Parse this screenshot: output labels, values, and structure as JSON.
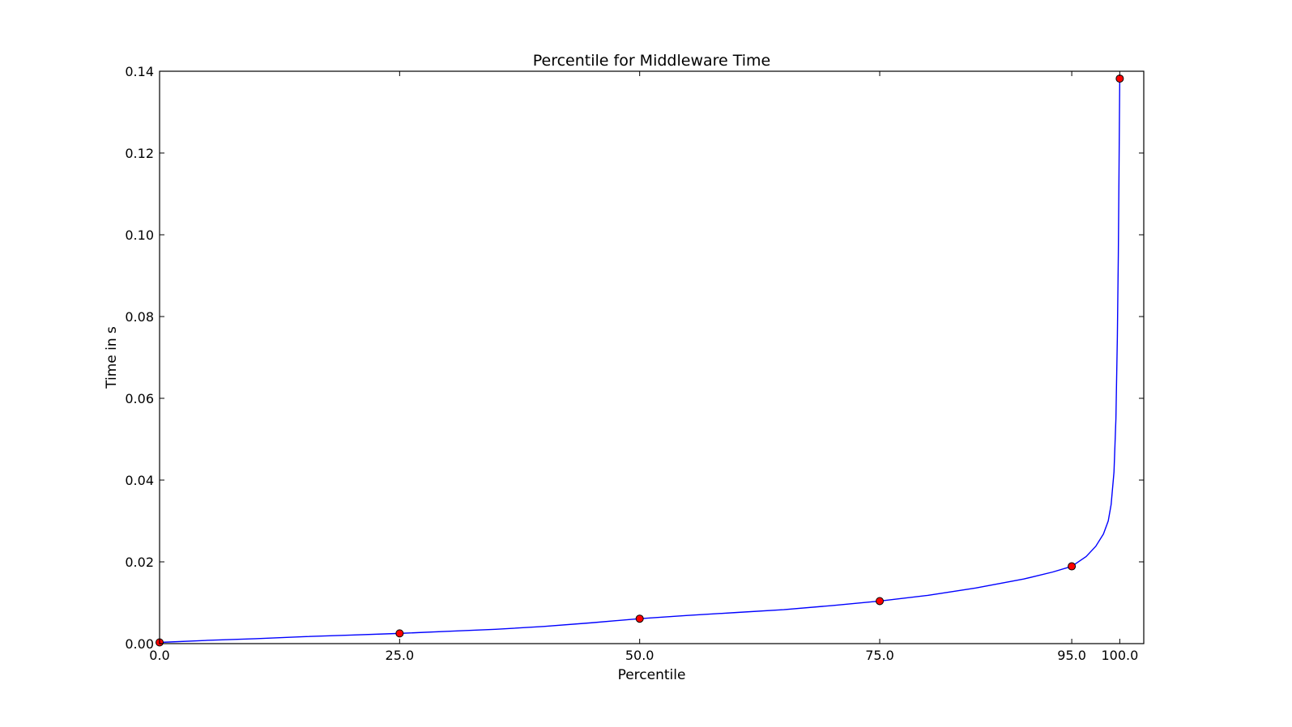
{
  "chart_data": {
    "type": "line",
    "title": "Percentile for Middleware Time",
    "xlabel": "Percentile",
    "ylabel": "Time in s",
    "xlim": [
      0,
      102.5
    ],
    "ylim": [
      0,
      0.14
    ],
    "x_ticks": [
      0.0,
      25.0,
      50.0,
      75.0,
      95.0,
      100.0
    ],
    "x_tick_labels": [
      "0.0",
      "25.0",
      "50.0",
      "75.0",
      "95.0",
      "100.0"
    ],
    "y_ticks": [
      0.0,
      0.02,
      0.04,
      0.06,
      0.08,
      0.1,
      0.12,
      0.14
    ],
    "y_tick_labels": [
      "0.00",
      "0.02",
      "0.04",
      "0.06",
      "0.08",
      "0.10",
      "0.12",
      "0.14"
    ],
    "grid": false,
    "series": [
      {
        "kind": "line",
        "color": "#0000ff",
        "x": [
          0,
          5,
          10,
          15,
          20,
          25,
          30,
          35,
          40,
          45,
          50,
          55,
          60,
          65,
          70,
          75,
          80,
          85,
          90,
          93,
          95,
          96.5,
          97.5,
          98.3,
          98.8,
          99.1,
          99.4,
          99.6,
          99.75,
          99.85,
          99.92,
          99.97,
          100
        ],
        "y": [
          0.0003,
          0.0008,
          0.0012,
          0.0017,
          0.0021,
          0.0025,
          0.003,
          0.0035,
          0.0042,
          0.0051,
          0.0061,
          0.0069,
          0.0076,
          0.0083,
          0.0093,
          0.0104,
          0.0118,
          0.0136,
          0.0158,
          0.0175,
          0.0189,
          0.0213,
          0.0238,
          0.0268,
          0.03,
          0.034,
          0.042,
          0.055,
          0.075,
          0.095,
          0.115,
          0.13,
          0.1382
        ]
      },
      {
        "kind": "markers",
        "color": "#ff0000",
        "x": [
          0,
          25,
          50,
          75,
          95,
          100
        ],
        "y": [
          0.0003,
          0.0025,
          0.0061,
          0.0104,
          0.0189,
          0.1382
        ]
      }
    ]
  }
}
